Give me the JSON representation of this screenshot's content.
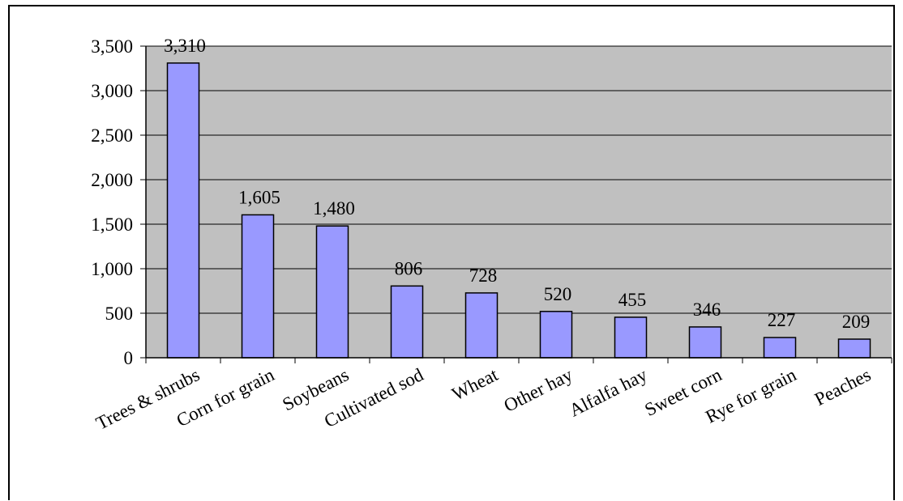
{
  "chart_data": {
    "type": "bar",
    "categories": [
      "Trees & shrubs",
      "Corn for grain",
      "Soybeans",
      "Cultivated sod",
      "Wheat",
      "Other hay",
      "Alfalfa hay",
      "Sweet corn",
      "Rye for grain",
      "Peaches"
    ],
    "values": [
      3310,
      1605,
      1480,
      806,
      728,
      520,
      455,
      346,
      227,
      209
    ],
    "data_labels": [
      "3,310",
      "1,605",
      "1,480",
      "806",
      "728",
      "520",
      "455",
      "346",
      "227",
      "209"
    ],
    "ylim": [
      0,
      3500
    ],
    "y_ticks": [
      0,
      500,
      1000,
      1500,
      2000,
      2500,
      3000,
      3500
    ],
    "y_tick_labels": [
      "0",
      "500",
      "1,000",
      "1,500",
      "2,000",
      "2,500",
      "3,000",
      "3,500"
    ],
    "grid": true,
    "legend": "none",
    "colors": {
      "bar_fill": "#9999FF",
      "plot_background": "#C0C0C0",
      "gridline": "#000000"
    }
  }
}
